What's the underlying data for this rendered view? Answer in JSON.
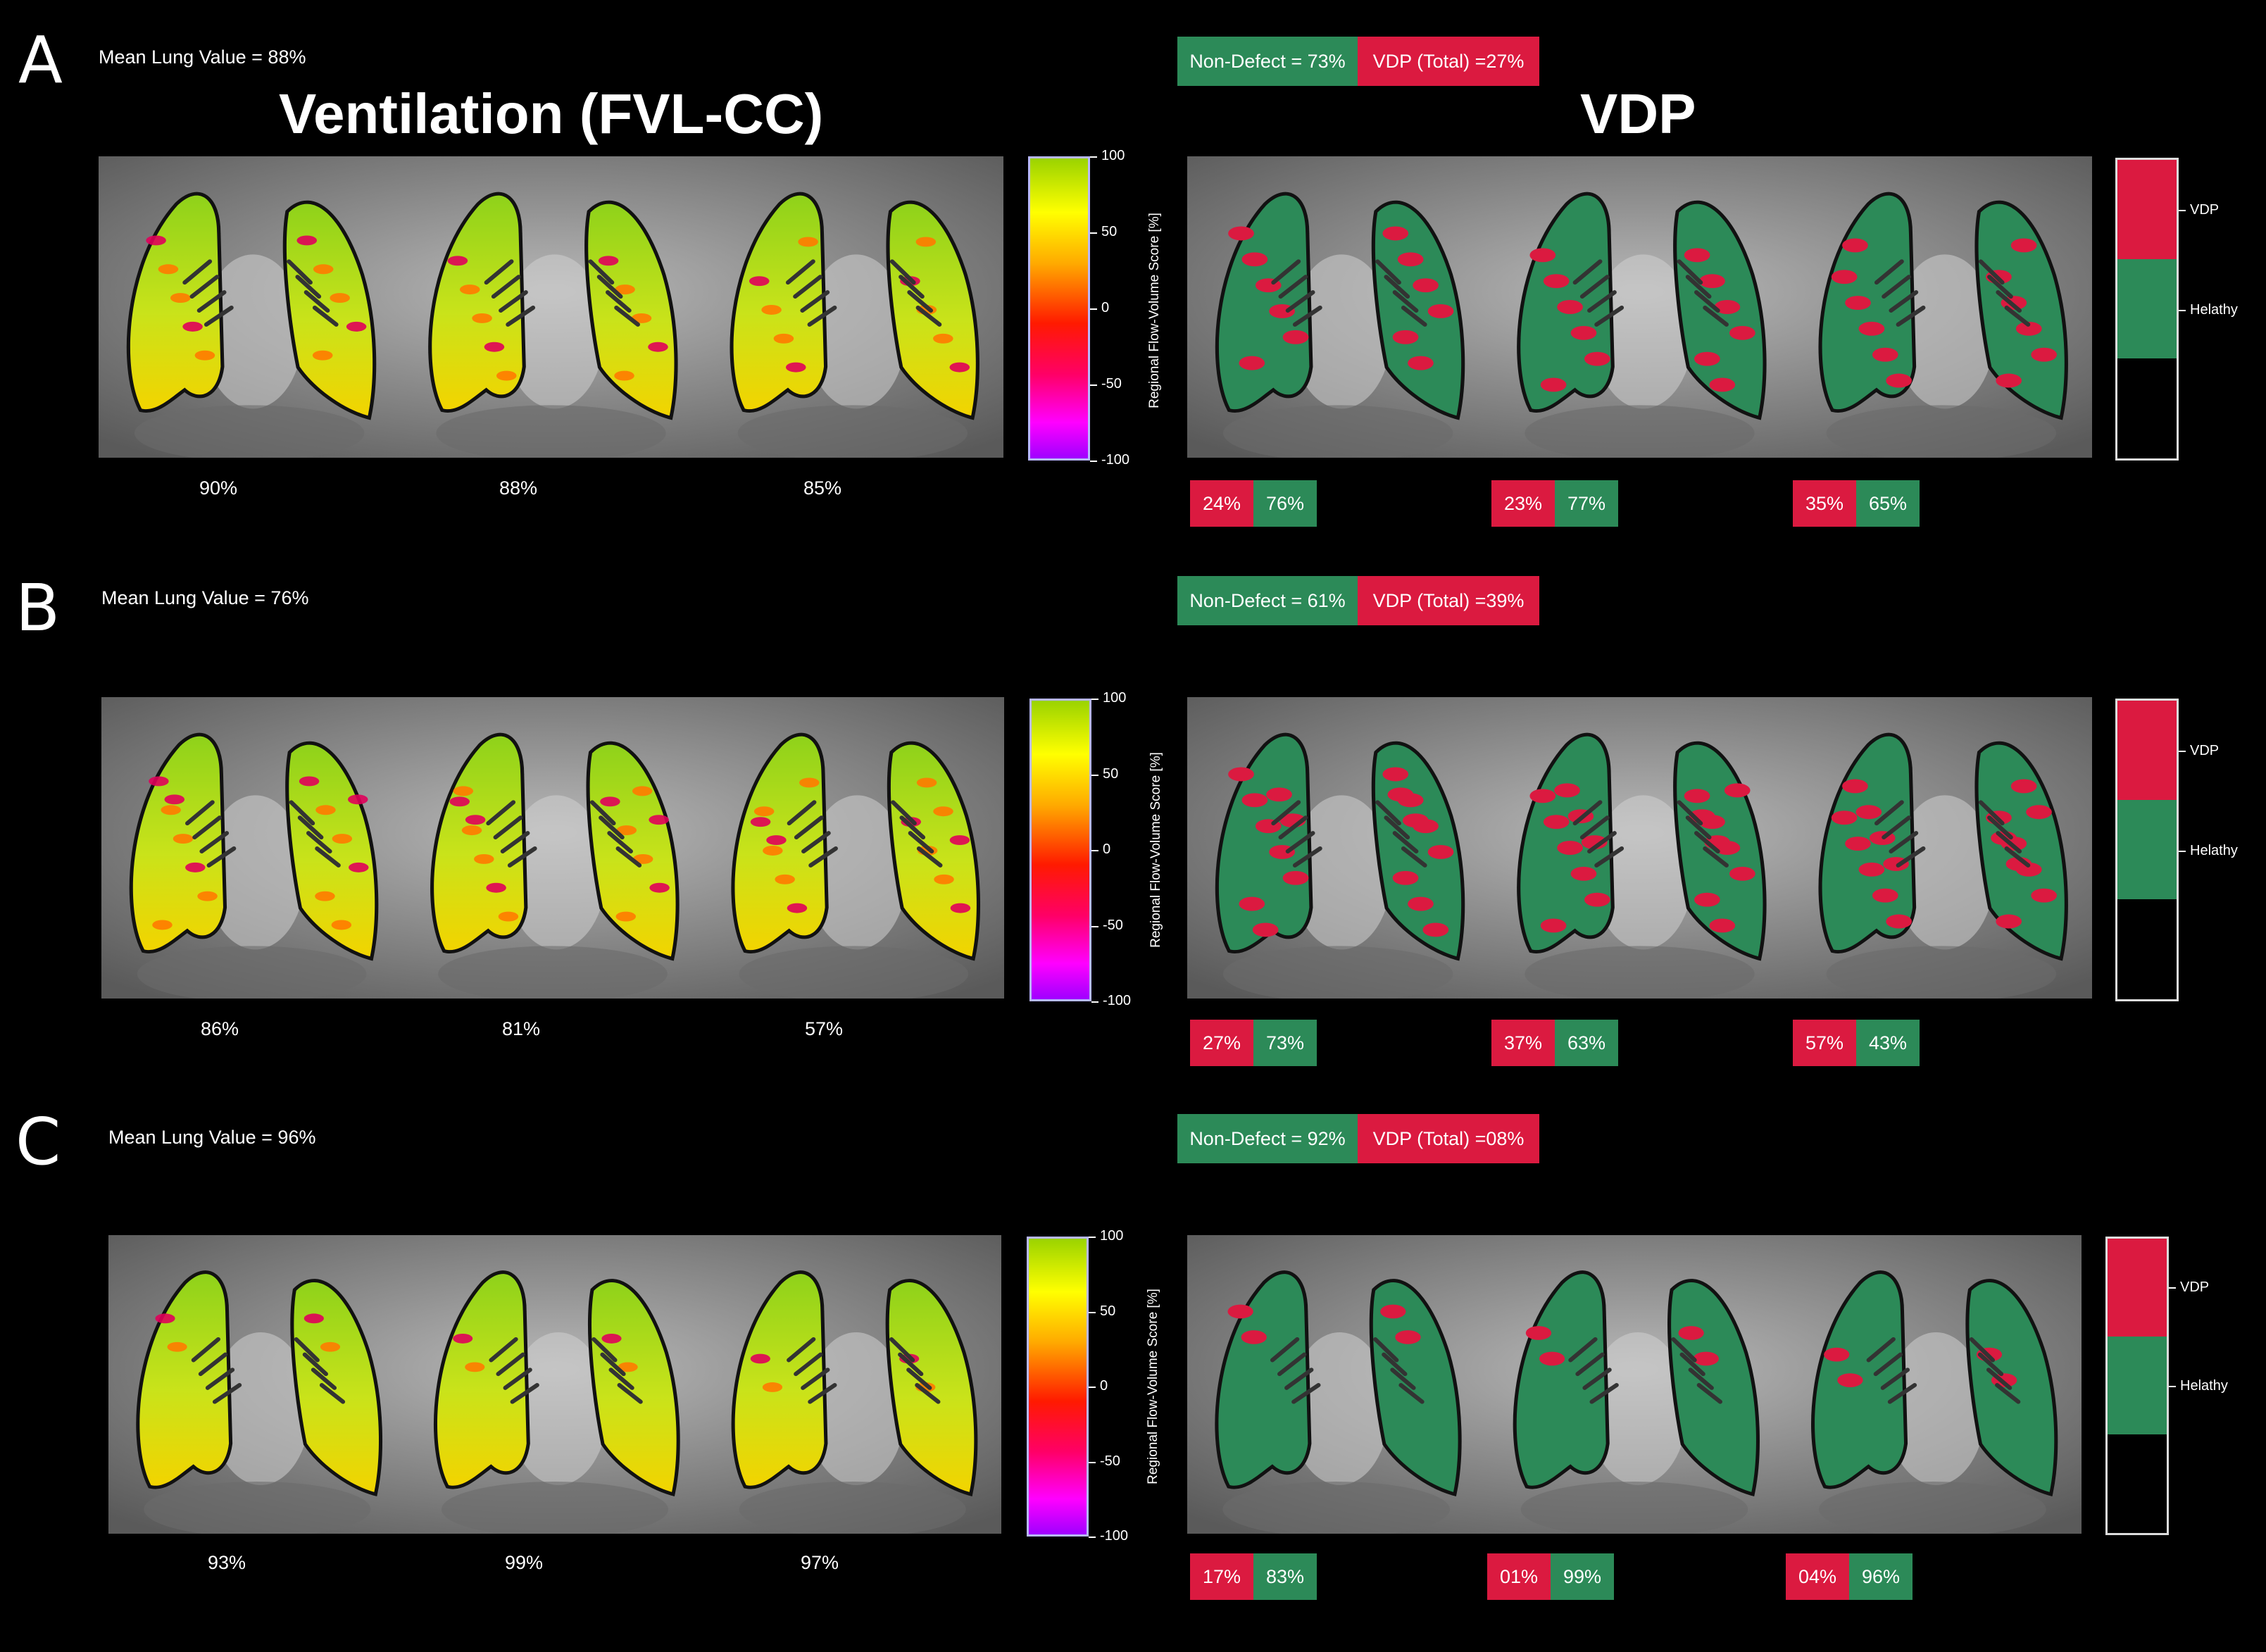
{
  "colors": {
    "defect": "#db1a40",
    "healthy": "#2c8a58",
    "background": "#000000"
  },
  "titles": {
    "left": "Ventilation (FVL-CC)",
    "right": "VDP"
  },
  "colorbar": {
    "label": "Regional Flow-Volume Score [%]",
    "ticks": [
      "100",
      "50",
      "0",
      "-50",
      "-100"
    ]
  },
  "legend": {
    "vdp": "VDP",
    "healthy": "Helathy"
  },
  "panels": [
    {
      "letter": "A",
      "mean_label": "Mean Lung Value = 88%",
      "nondefect_label": "Non-Defect = 73%",
      "vdp_total_label": "VDP (Total) =27%",
      "slice_values": [
        "90%",
        "88%",
        "85%"
      ],
      "slices": [
        {
          "defect": "24%",
          "healthy": "76%"
        },
        {
          "defect": "23%",
          "healthy": "77%"
        },
        {
          "defect": "35%",
          "healthy": "65%"
        }
      ]
    },
    {
      "letter": "B",
      "mean_label": "Mean Lung Value = 76%",
      "nondefect_label": "Non-Defect = 61%",
      "vdp_total_label": "VDP (Total) =39%",
      "slice_values": [
        "86%",
        "81%",
        "57%"
      ],
      "slices": [
        {
          "defect": "27%",
          "healthy": "73%"
        },
        {
          "defect": "37%",
          "healthy": "63%"
        },
        {
          "defect": "57%",
          "healthy": "43%"
        }
      ]
    },
    {
      "letter": "C",
      "mean_label": "Mean Lung Value = 96%",
      "nondefect_label": "Non-Defect = 92%",
      "vdp_total_label": "VDP (Total) =08%",
      "slice_values": [
        "93%",
        "99%",
        "97%"
      ],
      "slices": [
        {
          "defect": "17%",
          "healthy": "83%"
        },
        {
          "defect": "01%",
          "healthy": "99%"
        },
        {
          "defect": "04%",
          "healthy": "96%"
        }
      ]
    }
  ]
}
